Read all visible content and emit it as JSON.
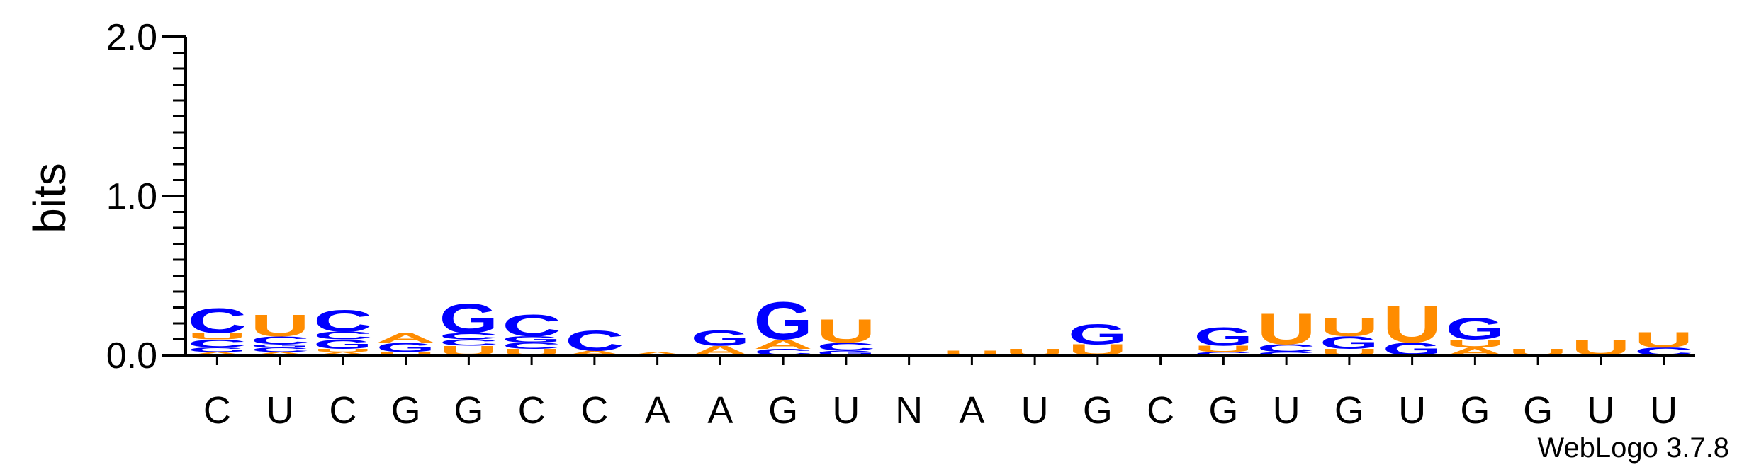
{
  "chart_data": {
    "type": "sequence-logo",
    "ylabel": "bits",
    "ylim": [
      0,
      2
    ],
    "yticks": [
      {
        "value": 0,
        "label": "0.0"
      },
      {
        "value": 1,
        "label": "1.0"
      },
      {
        "value": 2,
        "label": "2.0"
      }
    ],
    "footer": "WebLogo 3.7.8",
    "colors": {
      "A": "#ff8c00",
      "U": "#ff8c00",
      "G": "#0000ff",
      "C": "#0000ff"
    },
    "positions": [
      {
        "label": "C",
        "stack": [
          [
            "A",
            0.02
          ],
          [
            "G",
            0.03
          ],
          [
            "C",
            0.05
          ],
          [
            "U",
            0.04
          ],
          [
            "C",
            0.16
          ]
        ]
      },
      {
        "label": "U",
        "stack": [
          [
            "A",
            0.02
          ],
          [
            "C",
            0.03
          ],
          [
            "G",
            0.02
          ],
          [
            "C",
            0.05
          ],
          [
            "U",
            0.14
          ]
        ]
      },
      {
        "label": "C",
        "stack": [
          [
            "A",
            0.02
          ],
          [
            "U",
            0.02
          ],
          [
            "G",
            0.06
          ],
          [
            "C",
            0.05
          ],
          [
            "C",
            0.14
          ]
        ]
      },
      {
        "label": "G",
        "stack": [
          [
            "U",
            0.02
          ],
          [
            "G",
            0.06
          ],
          [
            "A",
            0.06
          ]
        ]
      },
      {
        "label": "G",
        "stack": [
          [
            "U",
            0.06
          ],
          [
            "C",
            0.04
          ],
          [
            "C",
            0.04
          ],
          [
            "G",
            0.19
          ]
        ]
      },
      {
        "label": "C",
        "stack": [
          [
            "U",
            0.04
          ],
          [
            "C",
            0.04
          ],
          [
            "G",
            0.04
          ],
          [
            "C",
            0.14
          ]
        ]
      },
      {
        "label": "C",
        "stack": [
          [
            "A",
            0.03
          ],
          [
            "C",
            0.13
          ]
        ]
      },
      {
        "label": "A",
        "stack": [
          [
            "A",
            0.02
          ]
        ]
      },
      {
        "label": "A",
        "stack": [
          [
            "A",
            0.06
          ],
          [
            "G",
            0.1
          ]
        ]
      },
      {
        "label": "G",
        "stack": [
          [
            "C",
            0.04
          ],
          [
            "A",
            0.06
          ],
          [
            "G",
            0.24
          ]
        ]
      },
      {
        "label": "U",
        "stack": [
          [
            "G",
            0.03
          ],
          [
            "C",
            0.05
          ],
          [
            "U",
            0.15
          ]
        ]
      },
      {
        "label": "N",
        "stack": []
      },
      {
        "label": "A",
        "stack": [
          [
            "U",
            0.03
          ]
        ]
      },
      {
        "label": "U",
        "stack": [
          [
            "U",
            0.04
          ]
        ]
      },
      {
        "label": "G",
        "stack": [
          [
            "U",
            0.07
          ],
          [
            "G",
            0.13
          ]
        ]
      },
      {
        "label": "C",
        "stack": [
          [
            "C",
            0.01
          ]
        ]
      },
      {
        "label": "G",
        "stack": [
          [
            "C",
            0.02
          ],
          [
            "U",
            0.04
          ],
          [
            "G",
            0.12
          ]
        ]
      },
      {
        "label": "U",
        "stack": [
          [
            "C",
            0.02
          ],
          [
            "C",
            0.05
          ],
          [
            "U",
            0.2
          ]
        ]
      },
      {
        "label": "G",
        "stack": [
          [
            "U",
            0.04
          ],
          [
            "G",
            0.08
          ],
          [
            "U",
            0.12
          ]
        ]
      },
      {
        "label": "U",
        "stack": [
          [
            "G",
            0.08
          ],
          [
            "U",
            0.24
          ]
        ]
      },
      {
        "label": "G",
        "stack": [
          [
            "A",
            0.05
          ],
          [
            "U",
            0.05
          ],
          [
            "G",
            0.14
          ]
        ]
      },
      {
        "label": "G",
        "stack": [
          [
            "U",
            0.04
          ]
        ]
      },
      {
        "label": "U",
        "stack": [
          [
            "U",
            0.1
          ]
        ]
      },
      {
        "label": "U",
        "stack": [
          [
            "C",
            0.05
          ],
          [
            "U",
            0.1
          ]
        ]
      }
    ]
  }
}
